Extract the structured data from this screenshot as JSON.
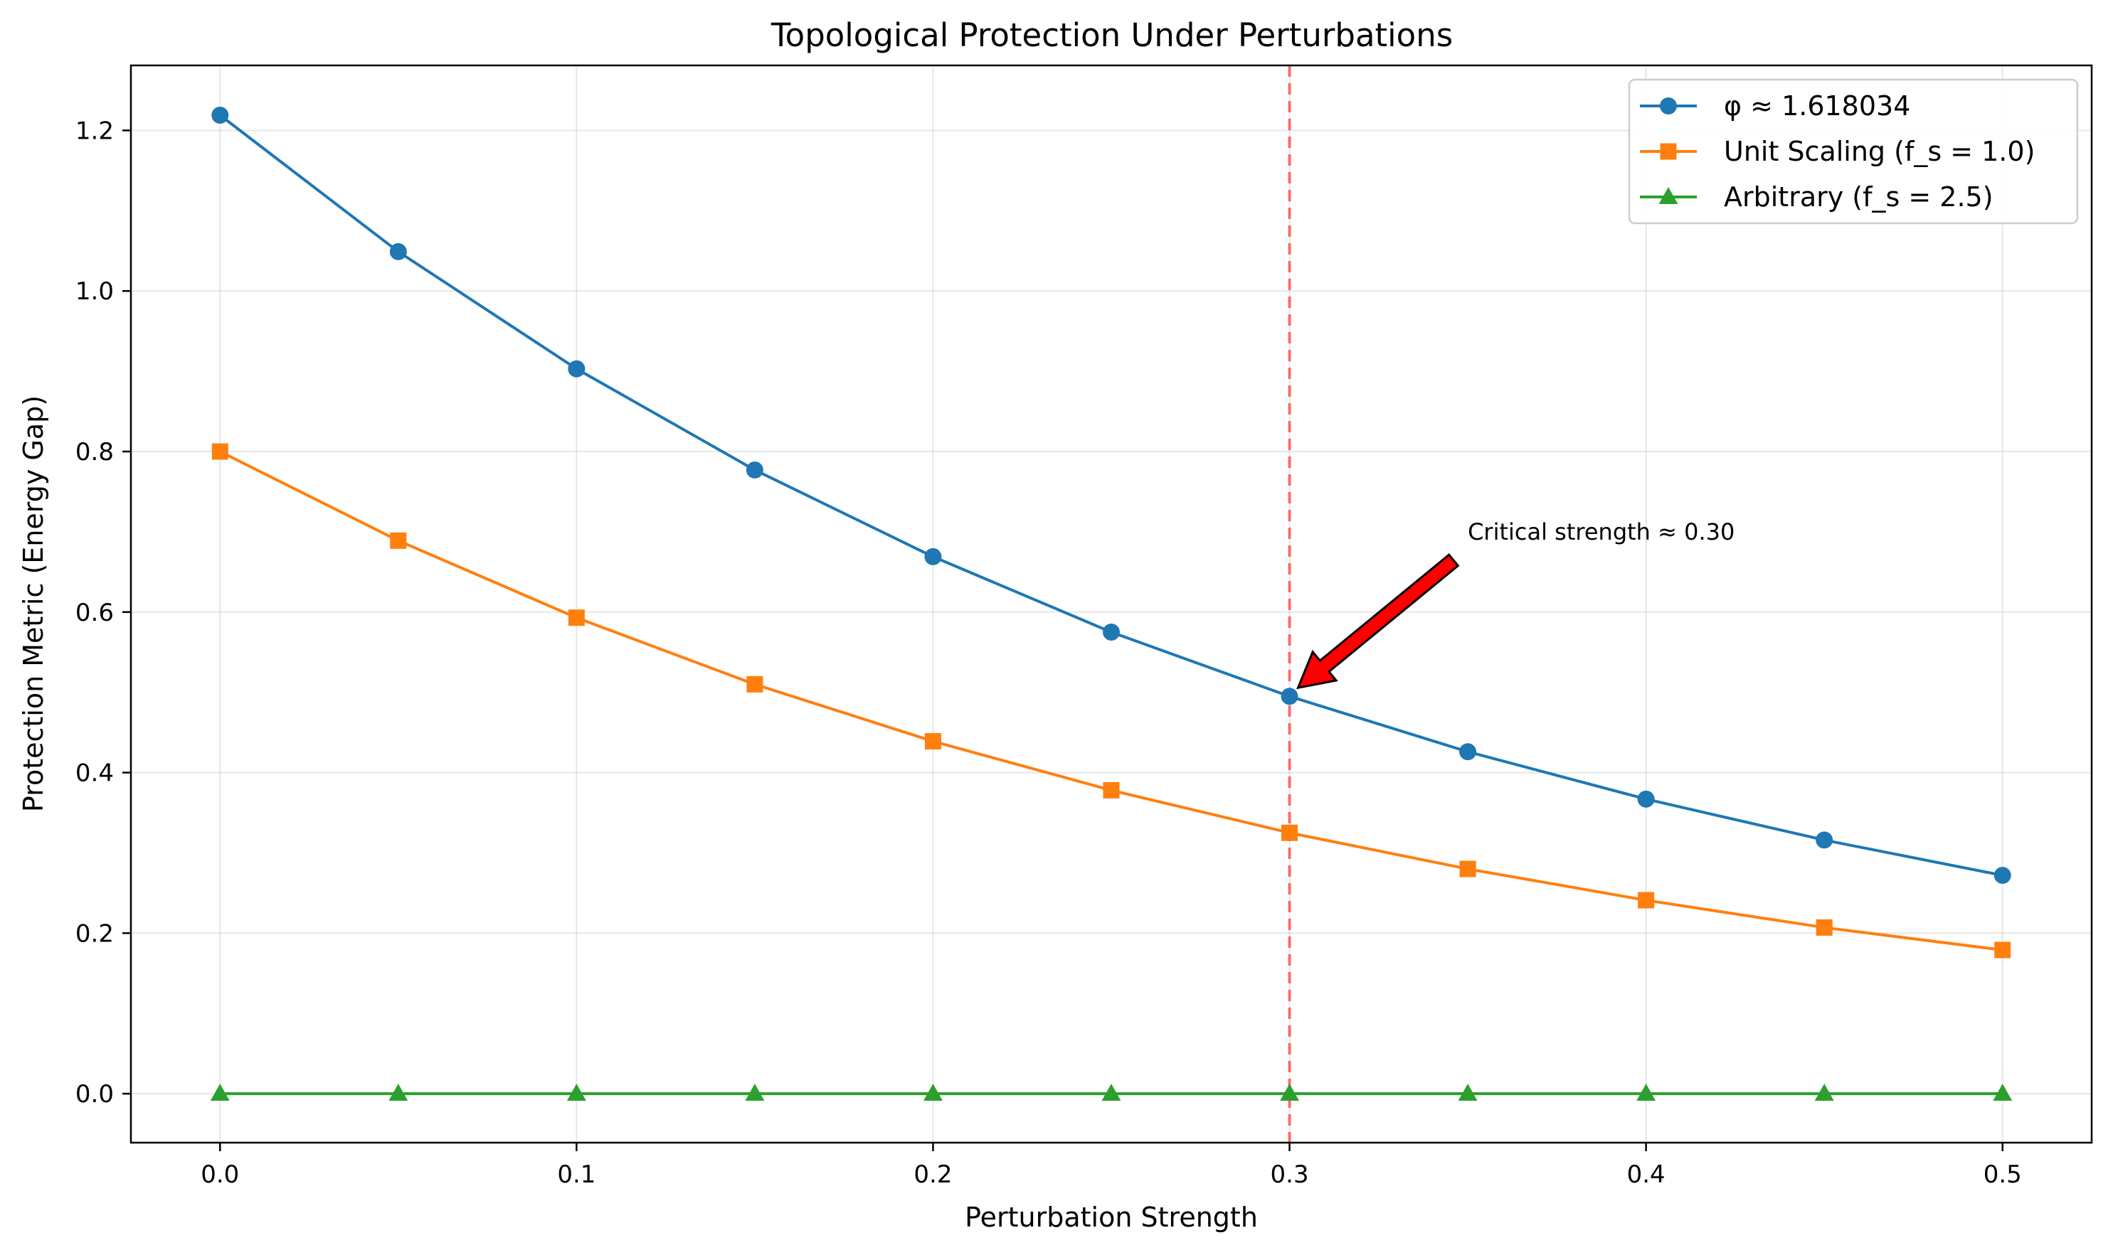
{
  "chart_data": {
    "type": "line",
    "title": "Topological Protection Under Perturbations",
    "xlabel": "Perturbation Strength",
    "ylabel": "Protection Metric (Energy Gap)",
    "xlim": [
      -0.025,
      0.525
    ],
    "ylim": [
      -0.061,
      1.281
    ],
    "xticks": [
      0.0,
      0.1,
      0.2,
      0.3,
      0.4,
      0.5
    ],
    "xtick_labels": [
      "0.0",
      "0.1",
      "0.2",
      "0.3",
      "0.4",
      "0.5"
    ],
    "yticks": [
      0.0,
      0.2,
      0.4,
      0.6,
      0.8,
      1.0,
      1.2
    ],
    "ytick_labels": [
      "0.0",
      "0.2",
      "0.4",
      "0.6",
      "0.8",
      "1.0",
      "1.2"
    ],
    "grid": true,
    "legend_position": "top-right",
    "x": [
      0.0,
      0.05,
      0.1,
      0.15,
      0.2,
      0.25,
      0.3,
      0.35,
      0.4,
      0.45,
      0.5
    ],
    "series": [
      {
        "name": "φ ≈ 1.618034",
        "marker": "circle",
        "color": "#1f77b4",
        "values": [
          1.219,
          1.049,
          0.903,
          0.777,
          0.669,
          0.575,
          0.495,
          0.426,
          0.367,
          0.316,
          0.272
        ]
      },
      {
        "name": "Unit Scaling (f_s = 1.0)",
        "marker": "square",
        "color": "#ff7f0e",
        "values": [
          0.8,
          0.689,
          0.593,
          0.51,
          0.439,
          0.378,
          0.325,
          0.28,
          0.241,
          0.207,
          0.179
        ]
      },
      {
        "name": "Arbitrary (f_s = 2.5)",
        "marker": "triangle",
        "color": "#2ca02c",
        "values": [
          0.0,
          0.0,
          0.0,
          0.0,
          0.0,
          0.0,
          0.0,
          0.0,
          0.0,
          0.0,
          0.0
        ]
      }
    ],
    "vline": {
      "x": 0.3,
      "color": "#ff0000",
      "style": "dashed"
    },
    "annotation": {
      "text": "Critical strength ≈ 0.30",
      "point": [
        0.3,
        0.495
      ],
      "text_position": [
        0.35,
        0.7
      ],
      "arrow_color": "#ff0000"
    }
  }
}
